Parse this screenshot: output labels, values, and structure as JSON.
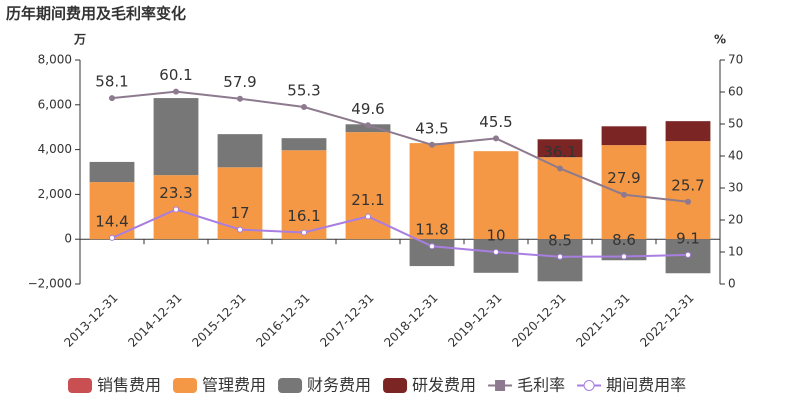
{
  "chart_data": {
    "type": "bar",
    "title": "历年期间费用及毛利率变化",
    "y_axis_label": "万",
    "y2_axis_label": "%",
    "categories": [
      "2013-12-31",
      "2014-12-31",
      "2015-12-31",
      "2016-12-31",
      "2017-12-31",
      "2018-12-31",
      "2019-12-31",
      "2020-12-31",
      "2021-12-31",
      "2022-12-31"
    ],
    "series": [
      {
        "name": "销售费用",
        "type": "bar",
        "color": "#c94f52",
        "values": [
          0,
          0,
          0,
          0,
          0,
          0,
          0,
          0,
          0,
          0
        ]
      },
      {
        "name": "管理费用",
        "type": "bar",
        "color": "#f59845",
        "values": [
          2550,
          2860,
          3210,
          3970,
          4780,
          4290,
          3930,
          3660,
          4200,
          4380
        ]
      },
      {
        "name": "财务费用",
        "type": "bar",
        "color": "#777777",
        "values": [
          900,
          3440,
          1480,
          540,
          350,
          -1200,
          -1500,
          -1880,
          -940,
          -1520
        ]
      },
      {
        "name": "研发费用",
        "type": "bar",
        "color": "#7b2525",
        "values": [
          0,
          0,
          0,
          0,
          0,
          0,
          0,
          800,
          840,
          890
        ]
      },
      {
        "name": "毛利率",
        "type": "line",
        "axis": "y2",
        "color": "#8e7a8e",
        "values": [
          58.1,
          60.1,
          57.9,
          55.3,
          49.6,
          43.5,
          45.5,
          36.1,
          27.9,
          25.7
        ]
      },
      {
        "name": "期间费用率",
        "type": "line",
        "axis": "y2",
        "color": "#a87ee0",
        "values": [
          14.4,
          23.3,
          17,
          16.1,
          21.1,
          11.8,
          10,
          8.5,
          8.6,
          9.1
        ]
      }
    ],
    "ylim": [
      -2000,
      8000
    ],
    "yticks": [
      {
        "value": -2000,
        "label": "−2,000"
      },
      0,
      {
        "value": 2000,
        "label": "2,000"
      },
      {
        "value": 4000,
        "label": "4,000"
      },
      {
        "value": 6000,
        "label": "6,000"
      },
      {
        "value": 8000,
        "label": "8,000"
      }
    ],
    "y2lim": [
      0,
      70
    ],
    "y2ticks": [
      0,
      10,
      20,
      30,
      40,
      50,
      60,
      70
    ]
  }
}
